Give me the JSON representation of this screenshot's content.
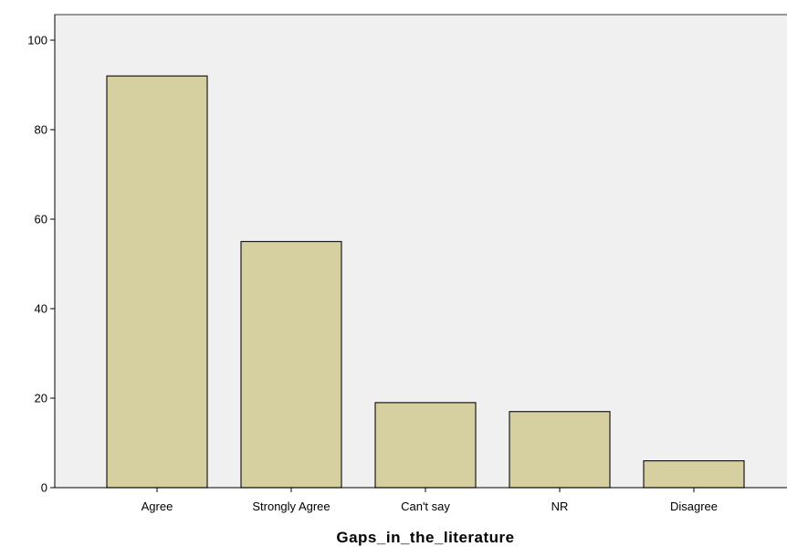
{
  "chart_data": {
    "type": "bar",
    "categories": [
      "Agree",
      "Strongly Agree",
      "Can't say",
      "NR",
      "Disagree"
    ],
    "values": [
      92,
      55,
      19,
      17,
      6
    ],
    "title": "",
    "xlabel": "Gaps_in_the_literature",
    "ylabel": "",
    "ylim": [
      0,
      100
    ],
    "yticks": [
      0,
      20,
      40,
      60,
      80,
      100
    ],
    "grid": false,
    "legend": "none",
    "bar_color": "#d6d0a0",
    "bar_edge_color": "#1a1a1a",
    "plot_background": "#f0f0f0"
  }
}
